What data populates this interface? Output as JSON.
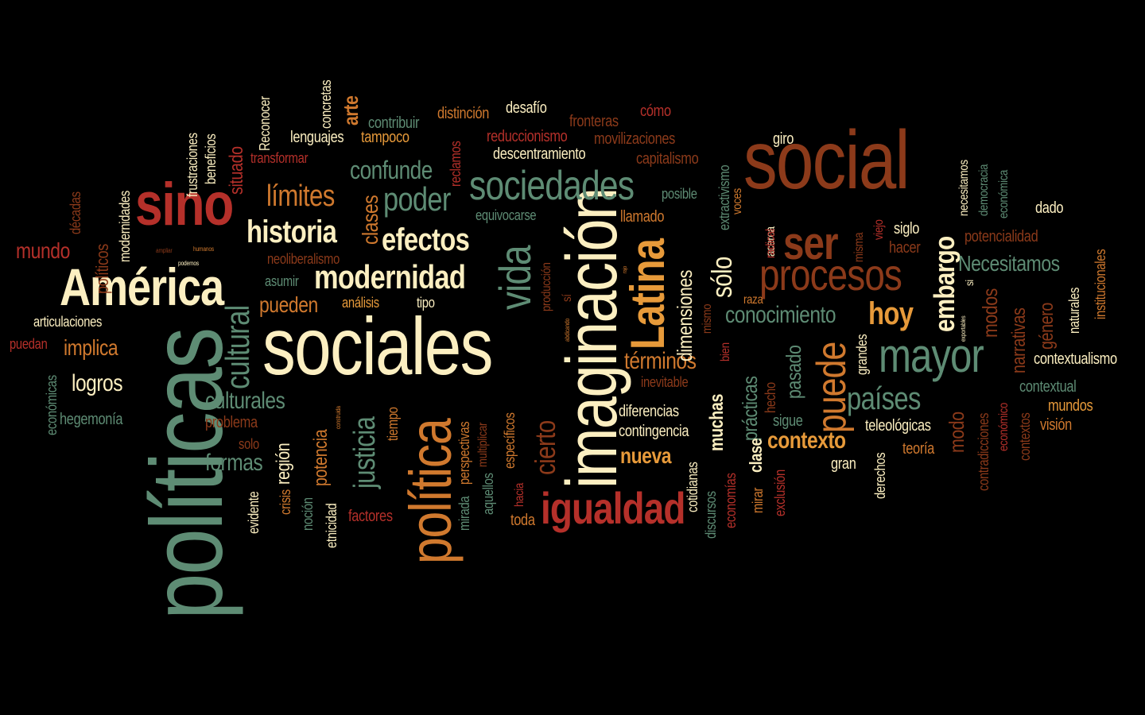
{
  "palette": {
    "background": "#000000",
    "cream": "#FCEFC1",
    "green": "#5E8C74",
    "red": "#B5302A",
    "brown": "#8C3A1A",
    "orange": "#D0792E",
    "light_orange": "#E79A3A"
  },
  "words": [
    {
      "text": "políticas"
    },
    {
      "text": "sociales"
    },
    {
      "text": "social"
    },
    {
      "text": "imaginación"
    },
    {
      "text": "política"
    },
    {
      "text": "América"
    },
    {
      "text": "sino"
    },
    {
      "text": "Latina"
    },
    {
      "text": "mayor"
    },
    {
      "text": "procesos"
    },
    {
      "text": "sociedades"
    },
    {
      "text": "igualdad"
    },
    {
      "text": "vida"
    },
    {
      "text": "ser"
    },
    {
      "text": "puede"
    },
    {
      "text": "modernidad"
    },
    {
      "text": "historia"
    },
    {
      "text": "cultural"
    },
    {
      "text": "embargo"
    },
    {
      "text": "efectos"
    },
    {
      "text": "poder"
    },
    {
      "text": "justicia"
    },
    {
      "text": "límites"
    },
    {
      "text": "países"
    },
    {
      "text": "confunde"
    },
    {
      "text": "cierto"
    },
    {
      "text": "sólo"
    },
    {
      "text": "Necesitamos"
    },
    {
      "text": "hoy"
    },
    {
      "text": "conocimiento"
    },
    {
      "text": "culturales"
    },
    {
      "text": "contexto"
    },
    {
      "text": "términos"
    },
    {
      "text": "prácticas"
    },
    {
      "text": "dimensiones"
    },
    {
      "text": "formas"
    },
    {
      "text": "clases"
    },
    {
      "text": "logros"
    },
    {
      "text": "pueden"
    },
    {
      "text": "implica"
    },
    {
      "text": "nueva"
    },
    {
      "text": "mundo"
    },
    {
      "text": "arte"
    },
    {
      "text": "modos"
    },
    {
      "text": "pasado"
    },
    {
      "text": "muchas"
    },
    {
      "text": "narrativas"
    },
    {
      "text": "género"
    },
    {
      "text": "región"
    },
    {
      "text": "potencia"
    },
    {
      "text": "situado"
    },
    {
      "text": "modo"
    },
    {
      "text": "clase"
    },
    {
      "text": "hegemonía"
    },
    {
      "text": "diferencias"
    },
    {
      "text": "contingencia"
    },
    {
      "text": "articulaciones"
    },
    {
      "text": "neoliberalismo"
    },
    {
      "text": "descentramiento"
    },
    {
      "text": "reduccionismo"
    },
    {
      "text": "fronteras"
    },
    {
      "text": "movilizaciones"
    },
    {
      "text": "capitalismo"
    },
    {
      "text": "distinción"
    },
    {
      "text": "desafío"
    },
    {
      "text": "cómo"
    },
    {
      "text": "contribuir"
    },
    {
      "text": "lenguajes"
    },
    {
      "text": "tampoco"
    },
    {
      "text": "reclamos"
    },
    {
      "text": "transformar"
    },
    {
      "text": "frustraciones"
    },
    {
      "text": "beneficios"
    },
    {
      "text": "Reconocer"
    },
    {
      "text": "concretas"
    },
    {
      "text": "modernidades"
    },
    {
      "text": "décadas"
    },
    {
      "text": "políticos"
    },
    {
      "text": "equivocarse"
    },
    {
      "text": "posible"
    },
    {
      "text": "llamado"
    },
    {
      "text": "extractivismo"
    },
    {
      "text": "voces"
    },
    {
      "text": "giro"
    },
    {
      "text": "necesitamos"
    },
    {
      "text": "democracia"
    },
    {
      "text": "económica"
    },
    {
      "text": "dado"
    },
    {
      "text": "siglo"
    },
    {
      "text": "hacer"
    },
    {
      "text": "potencialidad"
    },
    {
      "text": "institucionales"
    },
    {
      "text": "naturales"
    },
    {
      "text": "contextualismo"
    },
    {
      "text": "contextual"
    },
    {
      "text": "mundos"
    },
    {
      "text": "visión"
    },
    {
      "text": "contextos"
    },
    {
      "text": "económico"
    },
    {
      "text": "contradicciones"
    },
    {
      "text": "teleológicas"
    },
    {
      "text": "teoría"
    },
    {
      "text": "derechos"
    },
    {
      "text": "gran"
    },
    {
      "text": "grandes"
    },
    {
      "text": "sigue"
    },
    {
      "text": "hecho"
    },
    {
      "text": "exclusión"
    },
    {
      "text": "mirar"
    },
    {
      "text": "economías"
    },
    {
      "text": "bien"
    },
    {
      "text": "discursos"
    },
    {
      "text": "cotidianas"
    },
    {
      "text": "mismo"
    },
    {
      "text": "inevitable"
    },
    {
      "text": "toda"
    },
    {
      "text": "aquellos"
    },
    {
      "text": "mirada"
    },
    {
      "text": "específicos"
    },
    {
      "text": "hacia"
    },
    {
      "text": "perspectivas"
    },
    {
      "text": "multiplicar"
    },
    {
      "text": "tiempo"
    },
    {
      "text": "factores"
    },
    {
      "text": "etnicidad"
    },
    {
      "text": "noción"
    },
    {
      "text": "crisis"
    },
    {
      "text": "evidente"
    },
    {
      "text": "solo"
    },
    {
      "text": "problema"
    },
    {
      "text": "construida"
    },
    {
      "text": "económicas"
    },
    {
      "text": "puedan"
    },
    {
      "text": "asumir"
    },
    {
      "text": "análisis"
    },
    {
      "text": "tipo"
    },
    {
      "text": "producción"
    },
    {
      "text": "sí"
    },
    {
      "text": "abdicando"
    },
    {
      "text": "raza"
    },
    {
      "text": "acerca"
    },
    {
      "text": "radical"
    },
    {
      "text": "misma"
    },
    {
      "text": "viejo"
    },
    {
      "text": "si"
    },
    {
      "text": "exportables"
    },
    {
      "text": "ampliar"
    },
    {
      "text": "humanos"
    },
    {
      "text": "podemos"
    },
    {
      "text": "rajo"
    }
  ]
}
